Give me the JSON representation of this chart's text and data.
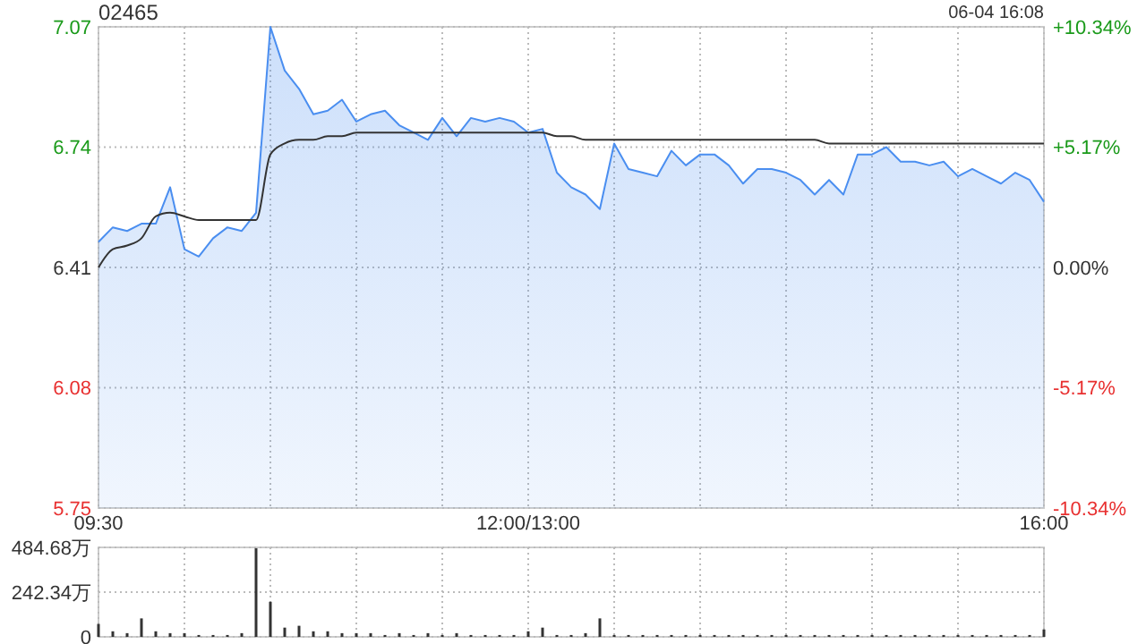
{
  "chart_data": [
    {
      "type": "area",
      "title": "02465",
      "annotations": [
        "06-04 16:08"
      ],
      "categories": [
        "09:30",
        null,
        null,
        null,
        null,
        null,
        null,
        null,
        null,
        null,
        null,
        null,
        null,
        null,
        null,
        null,
        null,
        null,
        null,
        null,
        null,
        null,
        null,
        null,
        null,
        null,
        null,
        null,
        null,
        null,
        "12:00/13:00",
        null,
        null,
        null,
        null,
        null,
        null,
        null,
        null,
        null,
        null,
        null,
        null,
        null,
        null,
        null,
        null,
        null,
        null,
        null,
        null,
        null,
        null,
        null,
        null,
        null,
        null,
        null,
        null,
        null,
        null,
        null,
        null,
        null,
        null,
        null,
        "16:00"
      ],
      "ylim": [
        5.75,
        7.07
      ],
      "yticks": [
        5.75,
        6.08,
        6.41,
        6.74,
        7.07
      ],
      "y2lim": [
        -10.34,
        10.34
      ],
      "y2ticks": [
        {
          "value": -10.34,
          "label": "-10.34%"
        },
        {
          "value": -5.17,
          "label": "-5.17%"
        },
        {
          "value": 0,
          "label": "0.00%"
        },
        {
          "value": 5.17,
          "label": "+5.17%"
        },
        {
          "value": 10.34,
          "label": "+10.34%"
        }
      ],
      "grid": true,
      "series": [
        {
          "color": "#4a8ef0",
          "values": [
            6.48,
            6.52,
            6.51,
            6.53,
            6.53,
            6.63,
            6.46,
            6.44,
            6.49,
            6.52,
            6.51,
            6.56,
            7.07,
            6.95,
            6.9,
            6.83,
            6.84,
            6.87,
            6.81,
            6.83,
            6.84,
            6.8,
            6.78,
            6.76,
            6.82,
            6.77,
            6.82,
            6.81,
            6.82,
            6.81,
            6.78,
            6.79,
            6.67,
            6.63,
            6.61,
            6.57,
            6.75,
            6.68,
            6.67,
            6.66,
            6.73,
            6.69,
            6.72,
            6.72,
            6.69,
            6.64,
            6.68,
            6.68,
            6.67,
            6.65,
            6.61,
            6.65,
            6.61,
            6.72,
            6.72,
            6.74,
            6.7,
            6.7,
            6.69,
            6.7,
            6.66,
            6.68,
            6.66,
            6.64,
            6.67,
            6.65,
            6.59
          ]
        },
        {
          "type": "line",
          "color": "#333333",
          "values": [
            6.41,
            6.46,
            6.47,
            6.49,
            6.55,
            6.56,
            6.55,
            6.54,
            6.54,
            6.54,
            6.54,
            6.54,
            6.72,
            6.75,
            6.76,
            6.76,
            6.77,
            6.77,
            6.78,
            6.78,
            6.78,
            6.78,
            6.78,
            6.78,
            6.78,
            6.78,
            6.78,
            6.78,
            6.78,
            6.78,
            6.78,
            6.78,
            6.77,
            6.77,
            6.76,
            6.76,
            6.76,
            6.76,
            6.76,
            6.76,
            6.76,
            6.76,
            6.76,
            6.76,
            6.76,
            6.76,
            6.76,
            6.76,
            6.76,
            6.76,
            6.76,
            6.75,
            6.75,
            6.75,
            6.75,
            6.75,
            6.75,
            6.75,
            6.75,
            6.75,
            6.75,
            6.75,
            6.75,
            6.75,
            6.75,
            6.75,
            6.75
          ]
        }
      ]
    },
    {
      "type": "bar",
      "categories": [
        null,
        null,
        null,
        null,
        null,
        null,
        null,
        null,
        null,
        null,
        null,
        null,
        null,
        null,
        null,
        null,
        null,
        null,
        null,
        null,
        null,
        null,
        null,
        null,
        null,
        null,
        null,
        null,
        null,
        null,
        null,
        null,
        null,
        null,
        null,
        null,
        null,
        null,
        null,
        null,
        null,
        null,
        null,
        null,
        null,
        null,
        null,
        null,
        null,
        null,
        null,
        null,
        null,
        null,
        null,
        null,
        null,
        null,
        null,
        null,
        null,
        null,
        null,
        null,
        null,
        null,
        null
      ],
      "ylim": [
        0,
        484.68
      ],
      "yticks": [
        0,
        {
          "value": 242.34,
          "label": "242.34万"
        },
        {
          "value": 484.68,
          "label": "484.68万"
        }
      ],
      "grid": true,
      "tick_labels": "y",
      "color": "#333333",
      "values": [
        70,
        30,
        20,
        100,
        30,
        20,
        20,
        10,
        10,
        10,
        20,
        480,
        190,
        50,
        60,
        30,
        30,
        20,
        20,
        20,
        10,
        20,
        10,
        20,
        10,
        20,
        10,
        10,
        10,
        10,
        30,
        50,
        10,
        10,
        20,
        100,
        10,
        10,
        10,
        10,
        10,
        10,
        10,
        10,
        10,
        10,
        10,
        10,
        10,
        10,
        10,
        10,
        10,
        10,
        10,
        10,
        10,
        10,
        10,
        10,
        10,
        10,
        10,
        10,
        10,
        10,
        40
      ]
    }
  ]
}
